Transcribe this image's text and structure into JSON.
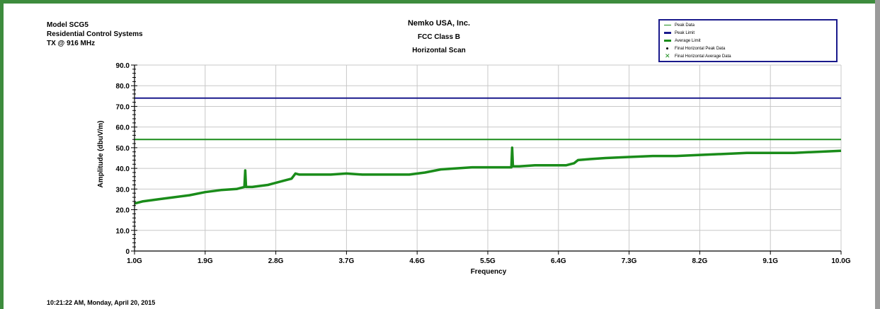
{
  "header": {
    "model": "Model SCG5",
    "company": "Residential Control Systems",
    "tx": "TX @ 916 MHz",
    "title": "Nemko USA, Inc.",
    "subtitle1": "FCC Class B",
    "subtitle2": "Horizontal Scan"
  },
  "timestamp": "10:21:22 AM, Monday, April 20, 2015",
  "legend": [
    {
      "label": "Peak Data",
      "color": "#1a8c1a",
      "marker": "line"
    },
    {
      "label": "Peak Limit",
      "color": "#1a1a8c",
      "marker": "thick-line"
    },
    {
      "label": "Average Limit",
      "color": "#1a8c1a",
      "marker": "thick-line"
    },
    {
      "label": "Final Horizontal Peak Data",
      "color": "#000000",
      "marker": "dot"
    },
    {
      "label": "Final Horizontal Average Data",
      "color": "#1a8c1a",
      "marker": "x"
    }
  ],
  "chart_data": {
    "type": "line",
    "title": "",
    "xlabel": "Frequency",
    "ylabel": "Amplitude (dbuV/m)",
    "xlim": [
      1.0,
      10.0
    ],
    "ylim": [
      0,
      90
    ],
    "x_ticks": [
      "1.0G",
      "1.9G",
      "2.8G",
      "3.7G",
      "4.6G",
      "5.5G",
      "6.4G",
      "7.3G",
      "8.2G",
      "9.1G",
      "10.0G"
    ],
    "y_ticks": [
      "0",
      "10.0",
      "20.0",
      "30.0",
      "40.0",
      "50.0",
      "60.0",
      "70.0",
      "80.0",
      "90.0"
    ],
    "grid": true,
    "legend_position": "top-right",
    "series": [
      {
        "name": "Peak Limit",
        "color": "#1a1a8c",
        "x": [
          1.0,
          10.0
        ],
        "y": [
          74,
          74
        ]
      },
      {
        "name": "Average Limit",
        "color": "#1a8c1a",
        "x": [
          1.0,
          10.0
        ],
        "y": [
          54,
          54
        ]
      },
      {
        "name": "Peak Data",
        "color": "#1a8c1a",
        "x": [
          1.0,
          1.1,
          1.3,
          1.5,
          1.7,
          1.9,
          2.1,
          2.3,
          2.4,
          2.41,
          2.42,
          2.5,
          2.7,
          2.9,
          3.0,
          3.05,
          3.1,
          3.3,
          3.5,
          3.7,
          3.9,
          4.1,
          4.3,
          4.5,
          4.7,
          4.9,
          5.1,
          5.3,
          5.5,
          5.6,
          5.7,
          5.8,
          5.81,
          5.82,
          5.9,
          6.1,
          6.3,
          6.5,
          6.6,
          6.65,
          6.8,
          7.0,
          7.3,
          7.6,
          7.9,
          8.2,
          8.5,
          8.8,
          9.1,
          9.4,
          9.7,
          10.0
        ],
        "y": [
          23,
          24,
          25,
          26,
          27,
          28.5,
          29.5,
          30,
          31,
          39,
          31,
          31,
          32,
          34,
          35,
          37.5,
          37,
          37,
          37,
          37.5,
          37,
          37,
          37,
          37,
          38,
          39.5,
          40,
          40.5,
          40.5,
          40.5,
          40.5,
          40.5,
          50,
          41,
          41,
          41.5,
          41.5,
          41.5,
          42.5,
          44,
          44.5,
          45,
          45.5,
          46,
          46,
          46.5,
          47,
          47.5,
          47.5,
          47.5,
          48,
          48.5
        ]
      }
    ]
  }
}
